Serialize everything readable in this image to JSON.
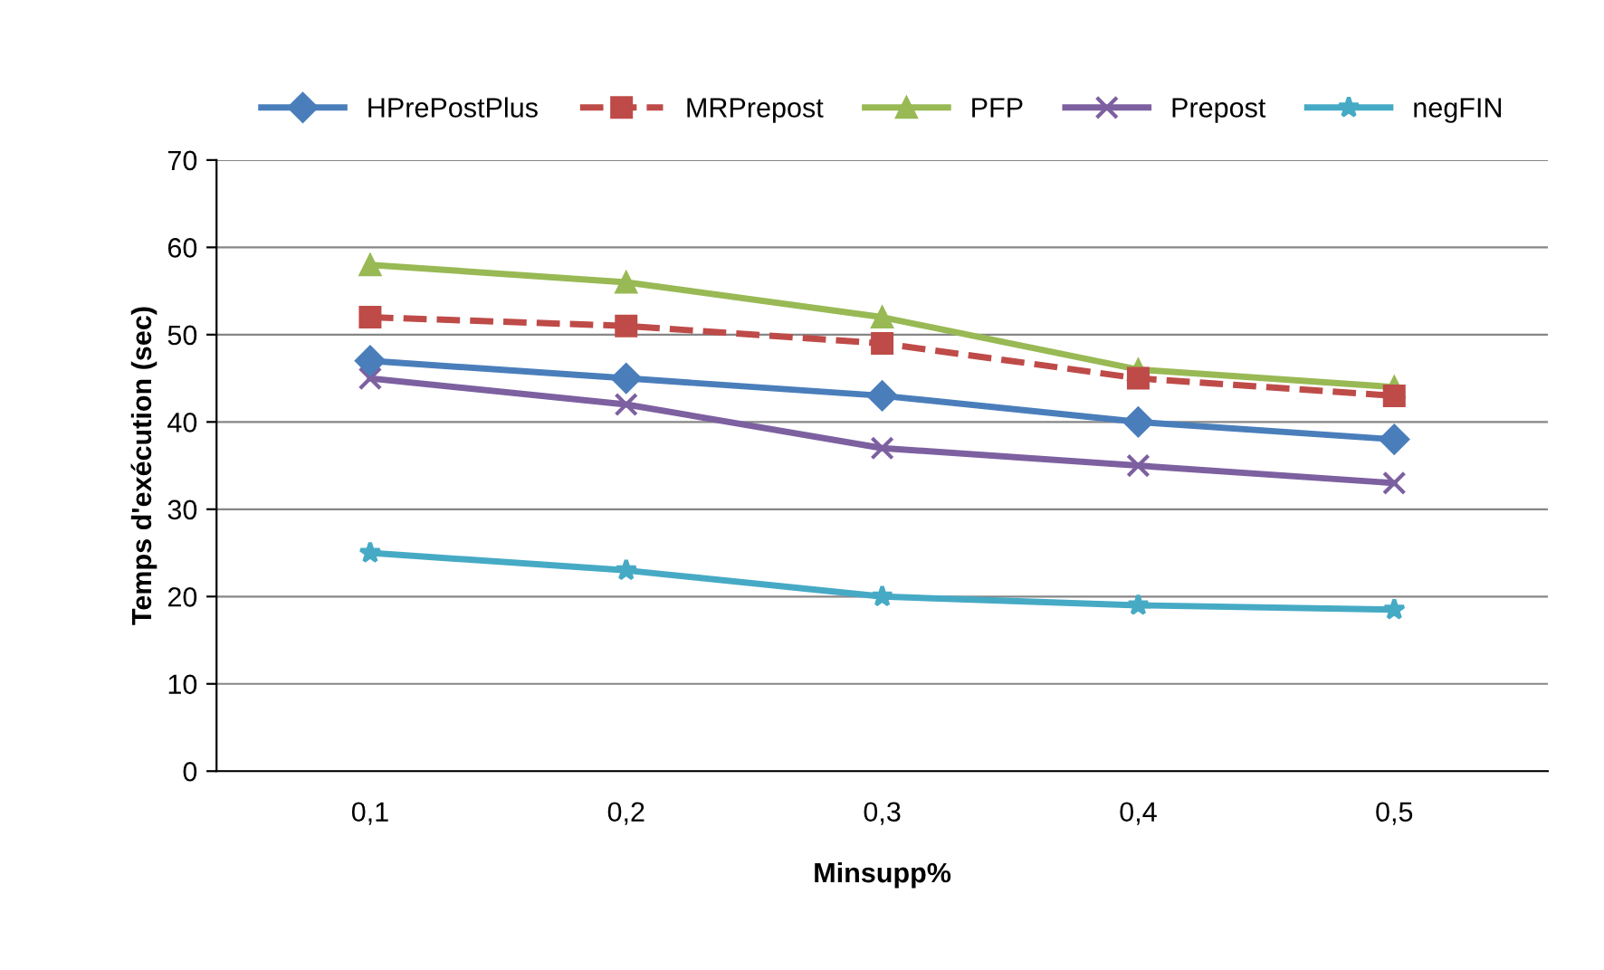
{
  "chart_data": {
    "type": "line",
    "xlabel": "Minsupp%",
    "ylabel": "Temps d'exécution (sec)",
    "categories": [
      "0,1",
      "0,2",
      "0,3",
      "0,4",
      "0,5"
    ],
    "series": [
      {
        "name": "HPrePostPlus",
        "color": "#4a7ebb",
        "marker": "diamond",
        "line_style": "solid",
        "values": [
          47,
          45,
          43,
          40,
          38
        ]
      },
      {
        "name": "MRPrepost",
        "color": "#be4b48",
        "marker": "square",
        "line_style": "dashed",
        "values": [
          52,
          51,
          49,
          45,
          43
        ]
      },
      {
        "name": "PFP",
        "color": "#98b954",
        "marker": "triangle",
        "line_style": "solid",
        "values": [
          58,
          56,
          52,
          46,
          44
        ]
      },
      {
        "name": "Prepost",
        "color": "#7d60a0",
        "marker": "cross",
        "line_style": "solid",
        "values": [
          45,
          42,
          37,
          35,
          33
        ]
      },
      {
        "name": "negFIN",
        "color": "#46aac5",
        "marker": "star",
        "line_style": "solid",
        "values": [
          25,
          23,
          20,
          19,
          18.5
        ]
      }
    ],
    "ylim": [
      0,
      70
    ],
    "yticks": [
      0,
      10,
      20,
      30,
      40,
      50,
      60,
      70
    ],
    "grid": "y",
    "legend": "top"
  }
}
